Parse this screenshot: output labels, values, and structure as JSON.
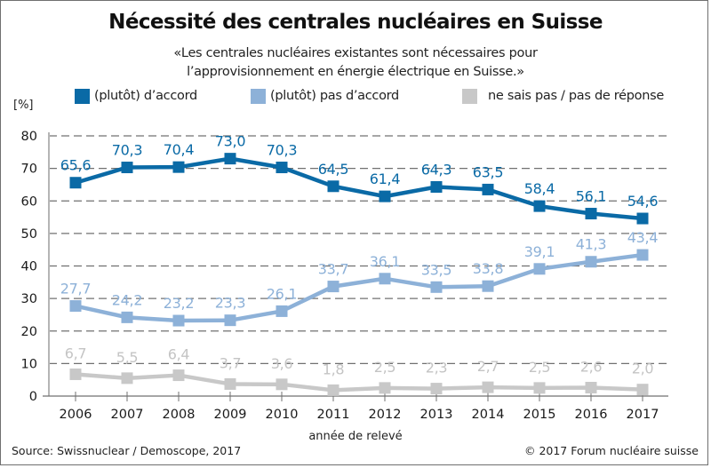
{
  "chart_data": {
    "type": "line",
    "title": "Nécessité des centrales nucléaires en Suisse",
    "subtitle_lines": [
      "«Les centrales nucléaires existantes sont nécessaires pour",
      "l’approvisionnement en énergie électrique en Suisse.»"
    ],
    "ylabel": "[%]",
    "xlabel": "année de relevé",
    "ylim": [
      0,
      80
    ],
    "yticks": [
      0,
      10,
      20,
      30,
      40,
      50,
      60,
      70,
      80
    ],
    "grid": true,
    "legend_position": "top",
    "x": [
      "2006",
      "2007",
      "2008",
      "2009",
      "2010",
      "2011",
      "2012",
      "2013",
      "2014",
      "2015",
      "2016",
      "2017"
    ],
    "series": [
      {
        "name": "(plutôt) d’accord",
        "color": "#0a6aa6",
        "values": [
          65.6,
          70.3,
          70.4,
          73.0,
          70.3,
          64.5,
          61.4,
          64.3,
          63.5,
          58.4,
          56.1,
          54.6
        ],
        "labels": [
          "65,6",
          "70,3",
          "70,4",
          "73,0",
          "70,3",
          "64,5",
          "61,4",
          "64,3",
          "63,5",
          "58,4",
          "56,1",
          "54,6"
        ]
      },
      {
        "name": "(plutôt) pas d’accord",
        "color": "#8db1d8",
        "values": [
          27.7,
          24.2,
          23.2,
          23.3,
          26.1,
          33.7,
          36.1,
          33.5,
          33.8,
          39.1,
          41.3,
          43.4
        ],
        "labels": [
          "27,7",
          "24,2",
          "23,2",
          "23,3",
          "26,1",
          "33,7",
          "36,1",
          "33,5",
          "33,8",
          "39,1",
          "41,3",
          "43,4"
        ]
      },
      {
        "name": "ne sais pas / pas de réponse",
        "color": "#c8c8c8",
        "values": [
          6.7,
          5.5,
          6.4,
          3.7,
          3.6,
          1.8,
          2.5,
          2.3,
          2.7,
          2.5,
          2.6,
          2.0
        ],
        "labels": [
          "6,7",
          "5,5",
          "6,4",
          "3,7",
          "3,6",
          "1,8",
          "2,5",
          "2,3",
          "2,7",
          "2,5",
          "2,6",
          "2,0"
        ]
      }
    ]
  },
  "footer": {
    "source": "Source: Swissnuclear / Demoscope, 2017",
    "copyright": "© 2017 Forum nucléaire suisse"
  }
}
